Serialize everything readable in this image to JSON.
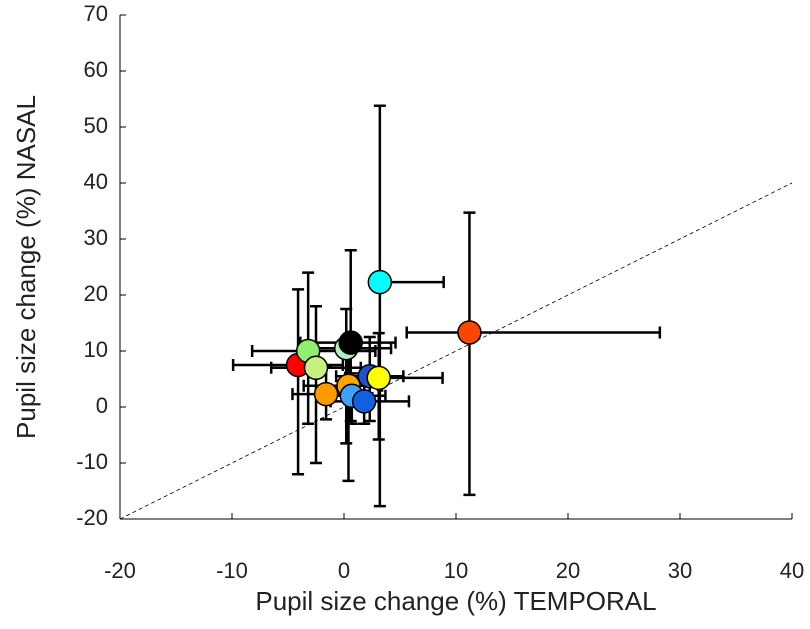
{
  "chart_data": {
    "type": "errorscatter",
    "xlabel": "Pupil size change (%) TEMPORAL",
    "ylabel": "Pupil size change (%) NASAL",
    "x": [
      -4.1,
      -3.2,
      -2.5,
      -1.6,
      0.2,
      0.6,
      0.4,
      0.7,
      1.8,
      2.3,
      3.1,
      3.2,
      11.2
    ],
    "values": [
      7.5,
      10,
      7,
      2.3,
      10.5,
      11.5,
      3.8,
      2,
      1,
      5.5,
      5.2,
      22.3,
      13.3
    ],
    "xerr": [
      [
        5.8,
        4
      ],
      [
        5,
        6
      ],
      [
        4,
        4
      ],
      [
        3,
        3
      ],
      [
        4,
        4
      ],
      [
        4.5,
        4
      ],
      [
        4,
        3
      ],
      [
        3,
        3
      ],
      [
        3,
        4
      ],
      [
        3,
        3
      ],
      [
        3,
        5.7
      ],
      [
        0,
        5.7
      ],
      [
        5.6,
        17
      ]
    ],
    "yerr": [
      [
        19.5,
        13.5
      ],
      [
        13,
        14
      ],
      [
        17,
        11
      ],
      [
        4.5,
        5
      ],
      [
        17,
        7
      ],
      [
        14,
        16.5
      ],
      [
        17,
        7
      ],
      [
        5,
        4
      ],
      [
        4,
        4
      ],
      [
        8,
        7
      ],
      [
        11,
        8
      ],
      [
        40,
        31.5
      ],
      [
        29,
        21.4
      ]
    ],
    "colors": [
      "#ff0000",
      "#90ee70",
      "#c8f080",
      "#ff9900",
      "#b0f0c0",
      "#000000",
      "#ffa500",
      "#40a0ff",
      "#1060e0",
      "#2050d0",
      "#ffff00",
      "#00ffff",
      "#ff4500"
    ],
    "xlim": [
      -20,
      40
    ],
    "ylim": [
      -20,
      70
    ],
    "xticks": [
      -20,
      -10,
      0,
      10,
      20,
      30,
      40
    ],
    "yticks": [
      -20,
      -10,
      0,
      10,
      20,
      30,
      40,
      50,
      60,
      70
    ],
    "identity_line": true
  }
}
